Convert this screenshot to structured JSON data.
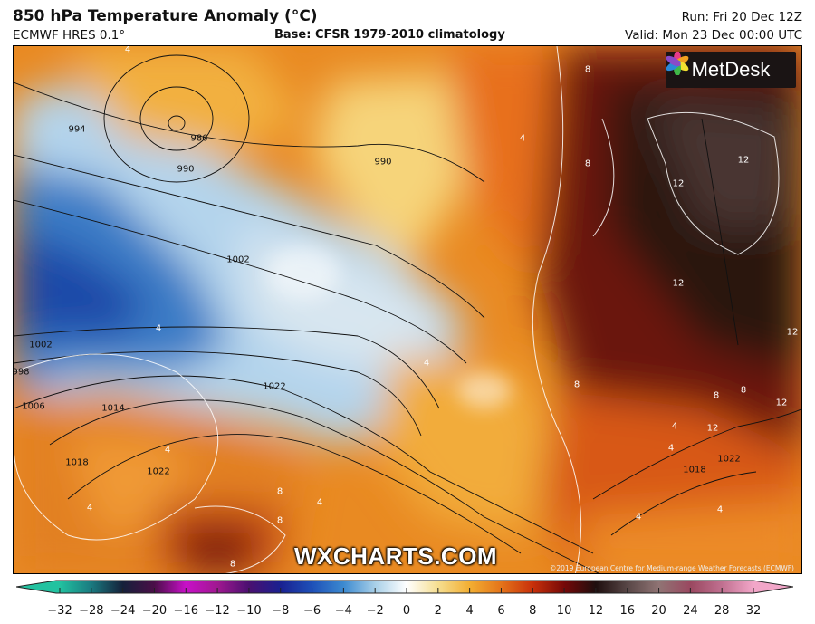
{
  "header": {
    "title": "850 hPa Temperature Anomaly (°C)",
    "model": "ECMWF HRES 0.1°",
    "base": "Base: CFSR 1979-2010 climatology",
    "run": "Run: Fri 20 Dec 12Z",
    "valid": "Valid: Mon 23 Dec 00:00 UTC"
  },
  "map": {
    "logo": "MetDesk",
    "watermark": "WXCHARTS.COM",
    "copyright": "©2019 European Centre for Medium-range Weather Forecasts (ECMWF)",
    "isobar_labels": [
      "994",
      "986",
      "990",
      "990",
      "1002",
      "1002",
      "998",
      "1006",
      "1014",
      "1018",
      "1022",
      "1022",
      "1018",
      "1022"
    ],
    "anomaly_labels": [
      "4",
      "8",
      "8",
      "4",
      "12",
      "12",
      "12",
      "12",
      "12",
      "8",
      "8",
      "8",
      "8",
      "12",
      "4",
      "4",
      "4",
      "4",
      "8",
      "8",
      "4",
      "4",
      "4",
      "4",
      "4"
    ]
  },
  "colorbar": {
    "ticks": [
      "−32",
      "−28",
      "−24",
      "−20",
      "−16",
      "−12",
      "−10",
      "−8",
      "−6",
      "−4",
      "−2",
      "0",
      "2",
      "4",
      "6",
      "8",
      "10",
      "12",
      "16",
      "20",
      "24",
      "28",
      "32"
    ],
    "colors": [
      "#22c2a0",
      "#1a7a80",
      "#15203a",
      "#4a0e48",
      "#c810c8",
      "#a01890",
      "#4a1070",
      "#1a2090",
      "#1e50b8",
      "#3c8ad0",
      "#a8d0e8",
      "#ffffff",
      "#f6de90",
      "#f2ae32",
      "#e4741a",
      "#c8300a",
      "#760808",
      "#1e0e0e",
      "#584646",
      "#907474",
      "#9a4860",
      "#c07090",
      "#f2a6c8"
    ]
  }
}
